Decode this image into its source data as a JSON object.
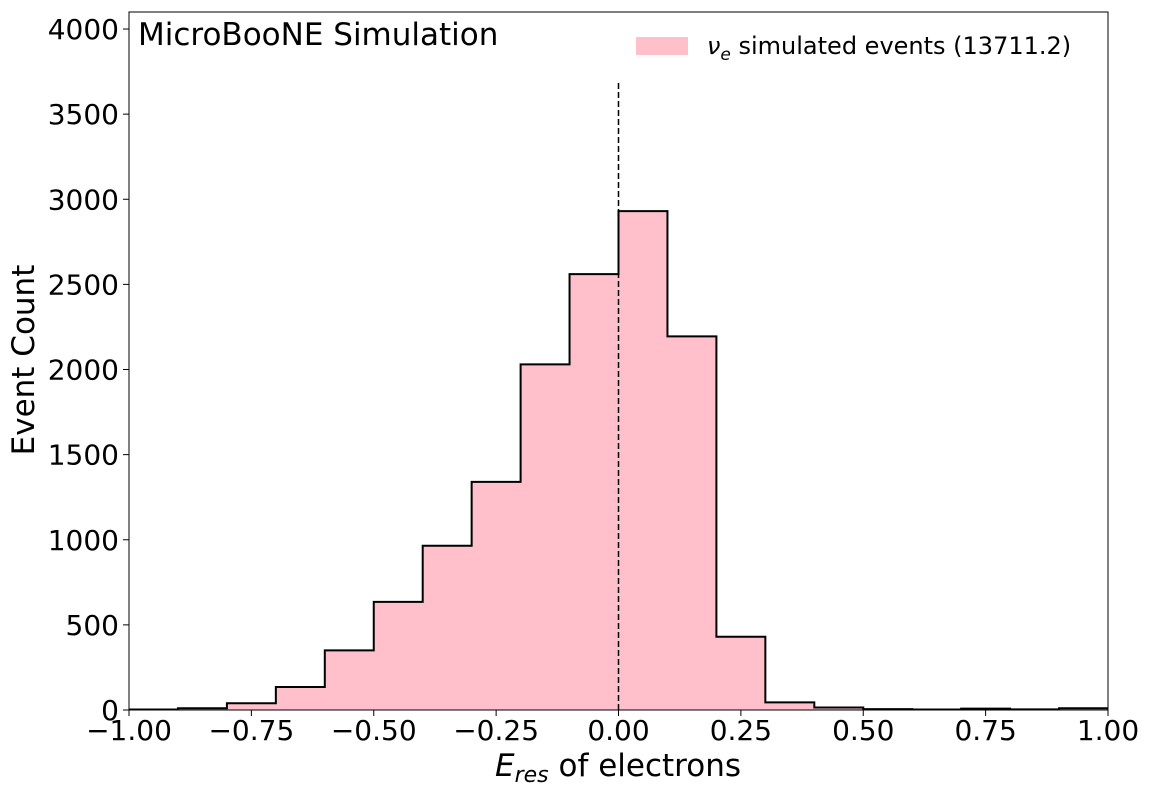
{
  "chart_data": {
    "type": "bar",
    "style": "histogram-step-filled",
    "annotation": "MicroBooNE Simulation",
    "xlabel_main": "E",
    "xlabel_sub": "res",
    "xlabel_rest": " of electrons",
    "ylabel": "Event Count",
    "xlim": [
      -1.0,
      1.0
    ],
    "ylim": [
      0,
      4100
    ],
    "xticks": [
      -1.0,
      -0.75,
      -0.5,
      -0.25,
      0.0,
      0.25,
      0.5,
      0.75,
      1.0
    ],
    "xtick_labels": [
      "−1.00",
      "−0.75",
      "−0.50",
      "−0.25",
      "0.00",
      "0.25",
      "0.50",
      "0.75",
      "1.00"
    ],
    "yticks": [
      0,
      500,
      1000,
      1500,
      2000,
      2500,
      3000,
      3500,
      4000
    ],
    "ytick_labels": [
      "0",
      "500",
      "1000",
      "1500",
      "2000",
      "2500",
      "3000",
      "3500",
      "4000"
    ],
    "bin_edges": [
      -1.0,
      -0.9,
      -0.8,
      -0.7,
      -0.6,
      -0.5,
      -0.4,
      -0.3,
      -0.2,
      -0.1,
      0.0,
      0.1,
      0.2,
      0.3,
      0.4,
      0.5,
      0.6,
      0.7,
      0.8,
      0.9,
      1.0
    ],
    "values": [
      3,
      10,
      40,
      135,
      350,
      635,
      965,
      1340,
      2030,
      2560,
      2930,
      2195,
      430,
      45,
      15,
      5,
      3,
      8,
      4,
      10
    ],
    "vline": {
      "x": 0.0,
      "ymax": 3690,
      "style": "dashed"
    },
    "legend": {
      "symbol_main": "ν",
      "symbol_sub": "e",
      "label": " simulated events (13711.2)",
      "position": "top-right"
    },
    "colors": {
      "fill": "#ffc0cb",
      "edge": "#000000",
      "frame": "#000000"
    },
    "grid": false
  }
}
